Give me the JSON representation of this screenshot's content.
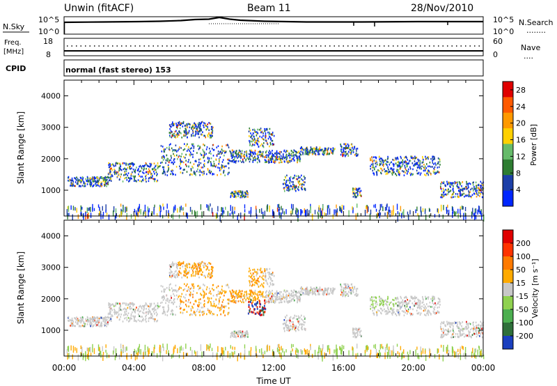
{
  "header": {
    "station": "Unwin (fitACF)",
    "beam": "Beam 11",
    "date": "28/Nov/2010"
  },
  "sky_panel": {
    "left_label": "N.Sky",
    "left_ticks": [
      "10^5",
      "10^0"
    ],
    "right_ticks": [
      "10^5",
      "10^0"
    ],
    "right_label": "N.Search",
    "right_legend_dots": "........"
  },
  "freq_panel": {
    "left_label_1": "Freq.",
    "left_label_2": "[MHz]",
    "left_ticks": [
      "18",
      "8"
    ],
    "right_ticks": [
      "60",
      "0"
    ],
    "right_label": "Nave",
    "right_legend_dots": "...."
  },
  "cpid": {
    "label": "CPID",
    "mode": "normal (fast stereo) 153"
  },
  "chart_data": [
    {
      "type": "heatmap",
      "panel": "power",
      "ylabel": "Slant Range [km]",
      "y_ticks": [
        "1000",
        "2000",
        "3000",
        "4000"
      ],
      "ylim": [
        180,
        4500
      ],
      "colorbar_label": "Power [dB]",
      "colorbar_ticks": [
        "4",
        "8",
        "12",
        "16",
        "20",
        "24",
        "28"
      ],
      "colorbar_range": [
        0,
        30
      ],
      "colorbar_colors": [
        "#0026ff",
        "#1c3fa8",
        "#2e7d32",
        "#66bb6a",
        "#ffd000",
        "#ff9900",
        "#ff5a00",
        "#e00000"
      ],
      "bands": [
        {
          "x0": 0.2,
          "x1": 2.5,
          "y0": 1150,
          "y1": 1450
        },
        {
          "x0": 2.5,
          "x1": 5.5,
          "y0": 1300,
          "y1": 1900
        },
        {
          "x0": 5.5,
          "x1": 9.5,
          "y0": 1500,
          "y1": 2500
        },
        {
          "x0": 6.0,
          "x1": 8.5,
          "y0": 2700,
          "y1": 3200
        },
        {
          "x0": 9.5,
          "x1": 13.5,
          "y0": 1900,
          "y1": 2300
        },
        {
          "x0": 10.5,
          "x1": 12.0,
          "y0": 2400,
          "y1": 3000
        },
        {
          "x0": 13.5,
          "x1": 15.5,
          "y0": 2150,
          "y1": 2400
        },
        {
          "x0": 15.8,
          "x1": 16.8,
          "y0": 2100,
          "y1": 2500
        },
        {
          "x0": 17.5,
          "x1": 21.5,
          "y0": 1500,
          "y1": 2100
        },
        {
          "x0": 21.5,
          "x1": 24.0,
          "y0": 800,
          "y1": 1300
        },
        {
          "x0": 12.5,
          "x1": 13.8,
          "y0": 1000,
          "y1": 1500
        },
        {
          "x0": 9.5,
          "x1": 10.5,
          "y0": 800,
          "y1": 1000
        },
        {
          "x0": 16.5,
          "x1": 17.0,
          "y0": 800,
          "y1": 1100
        }
      ]
    },
    {
      "type": "heatmap",
      "panel": "velocity",
      "ylabel": "Slant Range [km]",
      "y_ticks": [
        "1000",
        "2000",
        "3000",
        "4000"
      ],
      "ylim": [
        180,
        4500
      ],
      "colorbar_label": "Velocity [m s⁻¹]",
      "colorbar_ticks": [
        "200",
        "100",
        "50",
        "15",
        "-15",
        "-50",
        "-100",
        "-200"
      ],
      "colorbar_colors": [
        "#1a3fbf",
        "#2e6f3a",
        "#4caf50",
        "#8fd14f",
        "#c8c8c8",
        "#ffaa00",
        "#ff7a00",
        "#ff3300",
        "#e00000"
      ],
      "x_ticks": [
        "00:00",
        "04:00",
        "08:00",
        "12:00",
        "16:00",
        "20:00",
        "00:00"
      ],
      "xlabel": "Time UT",
      "xlim": [
        0,
        24
      ]
    }
  ]
}
